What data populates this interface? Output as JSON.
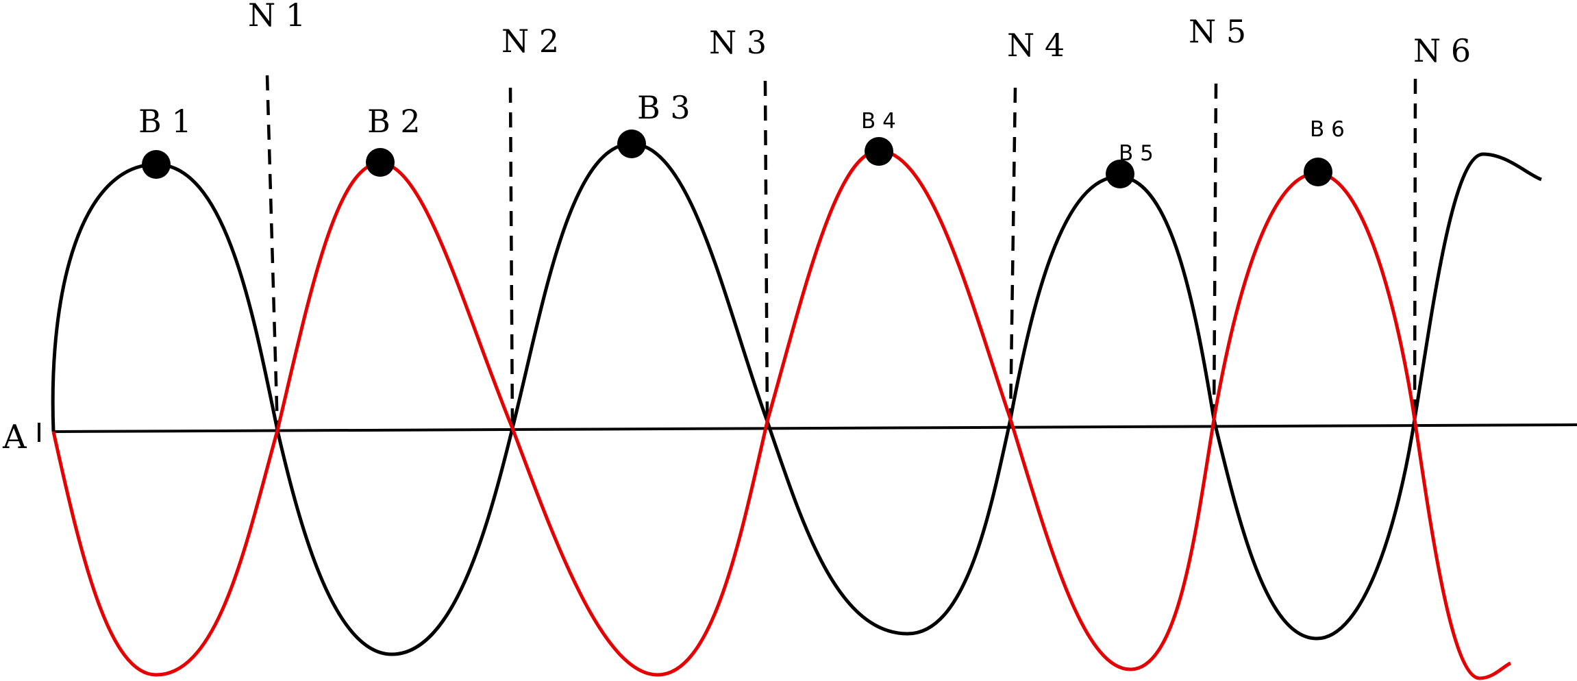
{
  "diagram": {
    "axis_label": "A",
    "nodes": [
      "N 1",
      "N 2",
      "N 3",
      "N 4",
      "N 5",
      "N 6"
    ],
    "antinodes": [
      "B 1",
      "B 2",
      "B 3",
      "B 4",
      "B 5",
      "B 6"
    ],
    "colors": {
      "wave_black": "#000000",
      "wave_red": "#e60000",
      "axis": "#000000",
      "marker": "#000000"
    }
  }
}
